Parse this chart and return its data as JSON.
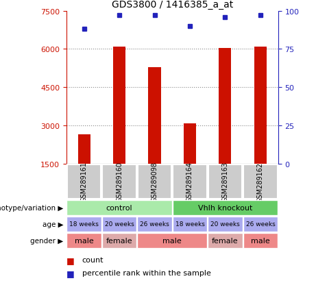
{
  "title": "GDS3800 / 1416385_a_at",
  "samples": [
    "GSM289161",
    "GSM289160",
    "GSM289098",
    "GSM289164",
    "GSM289163",
    "GSM289162"
  ],
  "bar_values": [
    2650,
    6100,
    5300,
    3100,
    6050,
    6100
  ],
  "percentile_values": [
    88,
    97,
    97,
    90,
    96,
    97
  ],
  "bar_color": "#cc1100",
  "dot_color": "#2222bb",
  "ylim_left": [
    1500,
    7500
  ],
  "yticks_left": [
    1500,
    3000,
    4500,
    6000,
    7500
  ],
  "yticks_right": [
    0,
    25,
    50,
    75,
    100
  ],
  "left_tick_color": "#cc1100",
  "right_tick_color": "#2222bb",
  "genotype_colors": {
    "control": "#aaeaaa",
    "Vhlh knockout": "#66cc66"
  },
  "age_color": "#aaaaee",
  "gender_male_color": "#ee8888",
  "gender_female_color": "#ddaaaa",
  "sample_box_color": "#cccccc",
  "row_labels": [
    "genotype/variation",
    "age",
    "gender"
  ],
  "legend_count_color": "#cc1100",
  "legend_dot_color": "#2222bb",
  "grid_color": "#888888",
  "gender_spans": [
    [
      "male",
      0,
      1
    ],
    [
      "female",
      1,
      2
    ],
    [
      "male",
      2,
      4
    ],
    [
      "female",
      4,
      5
    ],
    [
      "male",
      5,
      6
    ]
  ],
  "age_row": [
    "18 weeks",
    "20 weeks",
    "26 weeks",
    "18 weeks",
    "20 weeks",
    "26 weeks"
  ]
}
